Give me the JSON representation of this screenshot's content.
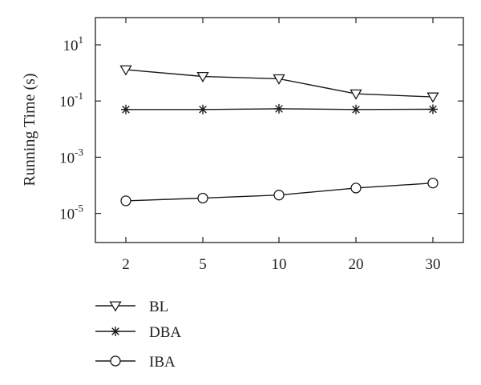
{
  "chart_data": {
    "type": "line",
    "ylabel": "Running Time (s)",
    "xlabel": "",
    "title": "",
    "x": [
      "2",
      "5",
      "10",
      "20",
      "30"
    ],
    "y_scale": "log",
    "ylim": [
      1e-06,
      100
    ],
    "yticks": [
      {
        "value": 10,
        "base": "10",
        "exp": "1"
      },
      {
        "value": 0.1,
        "base": "10",
        "exp": "-1"
      },
      {
        "value": 0.001,
        "base": "10",
        "exp": "-3"
      },
      {
        "value": 1e-05,
        "base": "10",
        "exp": "-5"
      }
    ],
    "grid": false,
    "legend_position": "bottom-left, below plot",
    "series": [
      {
        "name": "BL",
        "marker": "triangle-down",
        "values": [
          1.3,
          0.75,
          0.62,
          0.18,
          0.14
        ]
      },
      {
        "name": "DBA",
        "marker": "asterisk",
        "values": [
          0.05,
          0.05,
          0.053,
          0.05,
          0.051
        ]
      },
      {
        "name": "IBA",
        "marker": "circle",
        "values": [
          2.8e-05,
          3.5e-05,
          4.5e-05,
          8e-05,
          0.00012
        ]
      }
    ],
    "line_color": "#1a1a1a"
  }
}
